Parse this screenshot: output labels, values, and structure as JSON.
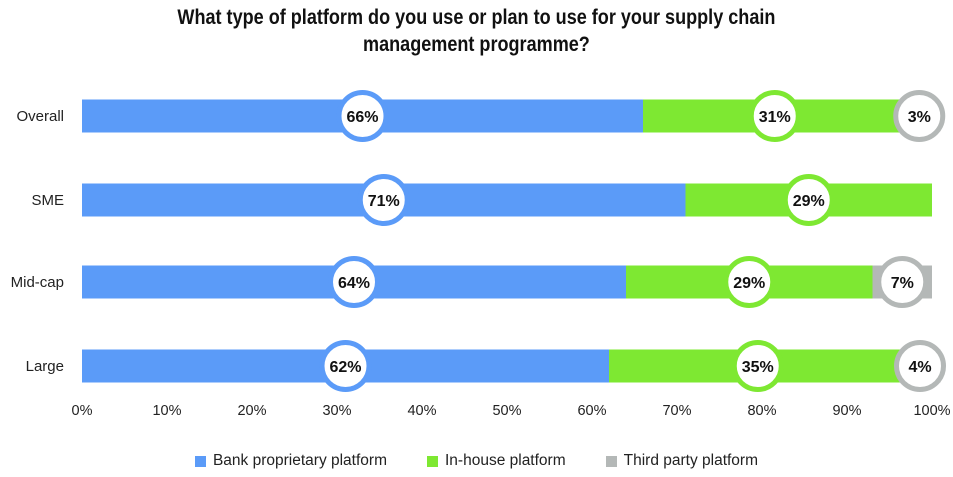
{
  "chart_data": {
    "type": "bar",
    "orientation": "horizontal",
    "stacked": true,
    "title_lines": [
      "What type of platform do you use or plan to use for your supply chain",
      "management programme?"
    ],
    "categories": [
      "Overall",
      "SME",
      "Mid-cap",
      "Large"
    ],
    "series": [
      {
        "name": "Bank proprietary platform",
        "values": [
          66,
          71,
          64,
          62
        ],
        "labels": [
          "66%",
          "71%",
          "64%",
          "62%"
        ],
        "color": "#5b9bf8"
      },
      {
        "name": "In-house platform",
        "values": [
          31,
          29,
          29,
          35
        ],
        "labels": [
          "31%",
          "29%",
          "29%",
          "35%"
        ],
        "color": "#7ee832"
      },
      {
        "name": "Third party platform",
        "values": [
          3,
          0,
          7,
          4
        ],
        "labels": [
          "3%",
          "",
          "7%",
          "4%"
        ],
        "color": "#b4b8b7"
      }
    ],
    "xlim": [
      0,
      100
    ],
    "x_ticks": [
      "0%",
      "10%",
      "20%",
      "30%",
      "40%",
      "50%",
      "60%",
      "70%",
      "80%",
      "90%",
      "100%"
    ],
    "grid": false,
    "legend_position": "bottom"
  }
}
